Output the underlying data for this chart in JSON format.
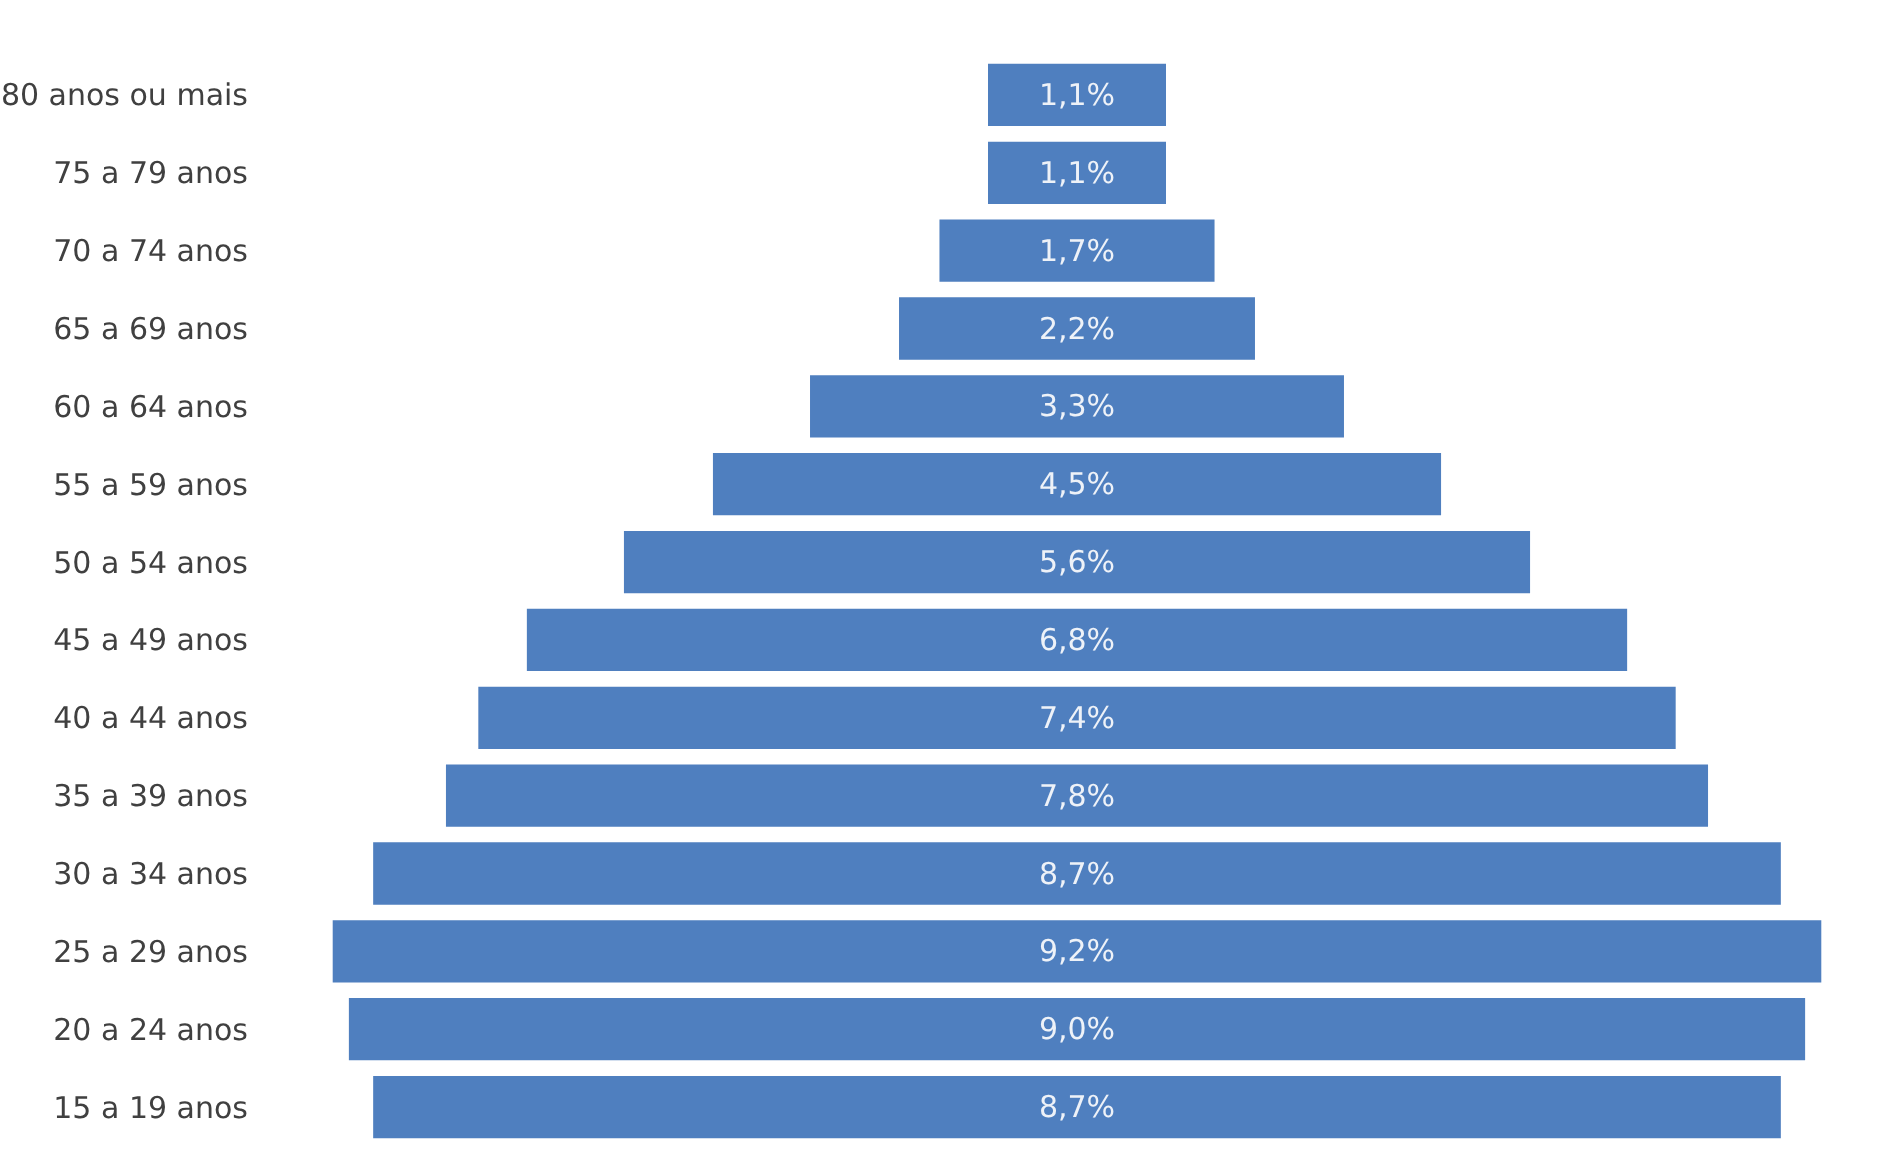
{
  "chart_data": {
    "type": "other",
    "categories": [
      "80 anos ou mais",
      "75 a 79 anos",
      "70 a 74 anos",
      "65 a 69 anos",
      "60 a 64 anos",
      "55 a 59 anos",
      "50 a 54 anos",
      "45 a 49 anos",
      "40 a 44 anos",
      "35 a 39 anos",
      "30 a 34 anos",
      "25 a 29 anos",
      "20 a 24 anos",
      "15 a 19 anos"
    ],
    "values": [
      1.1,
      1.1,
      1.7,
      2.2,
      3.3,
      4.5,
      5.6,
      6.8,
      7.4,
      7.8,
      8.7,
      9.2,
      9.0,
      8.7
    ],
    "value_labels": [
      "1,1%",
      "1,1%",
      "1,7%",
      "2,2%",
      "3,3%",
      "4,5%",
      "5,6%",
      "6,8%",
      "7,4%",
      "7,8%",
      "8,7%",
      "9,2%",
      "9,0%",
      "8,7%"
    ],
    "color": "#4f7fbf"
  }
}
